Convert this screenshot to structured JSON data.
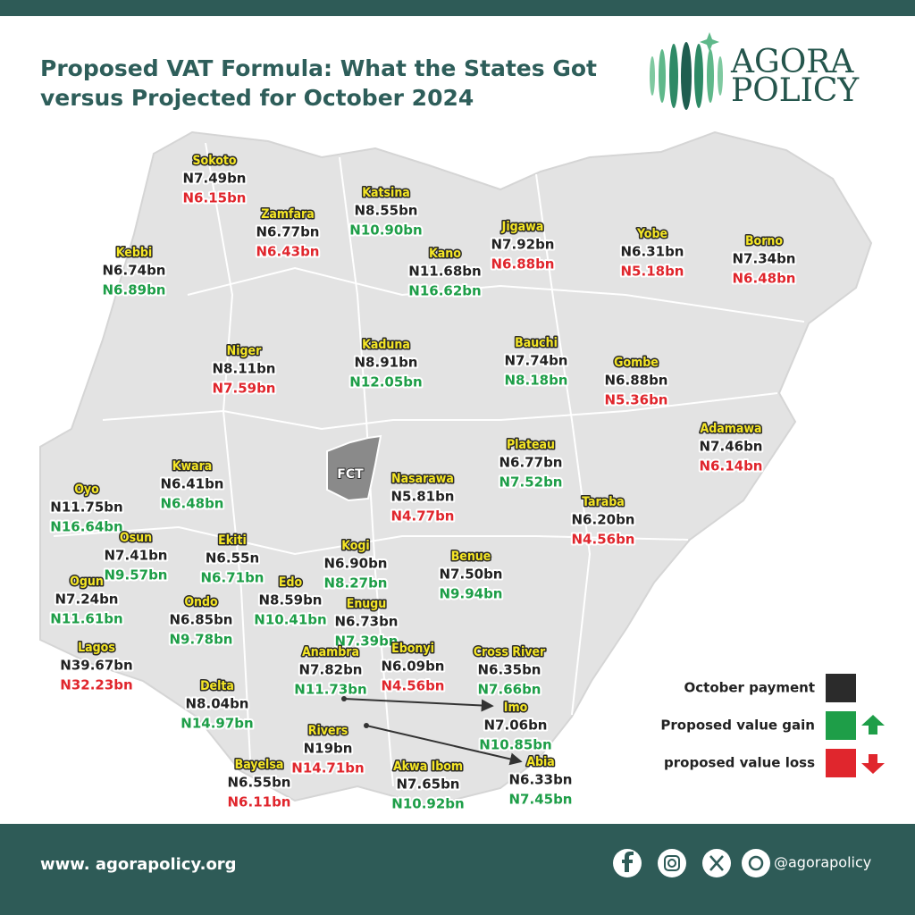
{
  "header": {
    "title_lines": [
      "Proposed VAT Formula: What the States Got",
      "versus Projected for October 2024"
    ],
    "logo": [
      "AGORA",
      "POLICY"
    ]
  },
  "map": {
    "fct_label": "FCT",
    "states": [
      {
        "name": "Sokoto",
        "october": "N7.49bn",
        "proposed": "N6.15bn",
        "proposed_color": "#e0262d"
      },
      {
        "name": "Zamfara",
        "october": "N6.77bn",
        "proposed": "N6.43bn",
        "proposed_color": "#e0262d"
      },
      {
        "name": "Katsina",
        "october": "N8.55bn",
        "proposed": "N10.90bn",
        "proposed_color": "#1e9e48"
      },
      {
        "name": "Kebbi",
        "october": "N6.74bn",
        "proposed": "N6.89bn",
        "proposed_color": "#1e9e48"
      },
      {
        "name": "Kano",
        "october": "N11.68bn",
        "proposed": "N16.62bn",
        "proposed_color": "#1e9e48"
      },
      {
        "name": "Jigawa",
        "october": "N7.92bn",
        "proposed": "N6.88bn",
        "proposed_color": "#e0262d"
      },
      {
        "name": "Yobe",
        "october": "N6.31bn",
        "proposed": "N5.18bn",
        "proposed_color": "#e0262d"
      },
      {
        "name": "Borno",
        "october": "N7.34bn",
        "proposed": "N6.48bn",
        "proposed_color": "#e0262d"
      },
      {
        "name": "Niger",
        "october": "N8.11bn",
        "proposed": "N7.59bn",
        "proposed_color": "#e0262d"
      },
      {
        "name": "Kaduna",
        "october": "N8.91bn",
        "proposed": "N12.05bn",
        "proposed_color": "#1e9e48"
      },
      {
        "name": "Bauchi",
        "october": "N7.74bn",
        "proposed": "N8.18bn",
        "proposed_color": "#1e9e48"
      },
      {
        "name": "Gombe",
        "october": "N6.88bn",
        "proposed": "N5.36bn",
        "proposed_color": "#e0262d"
      },
      {
        "name": "Adamawa",
        "october": "N7.46bn",
        "proposed": "N6.14bn",
        "proposed_color": "#e0262d"
      },
      {
        "name": "Plateau",
        "october": "N6.77bn",
        "proposed": "N7.52bn",
        "proposed_color": "#1e9e48"
      },
      {
        "name": "Kwara",
        "october": "N6.41bn",
        "proposed": "N6.48bn",
        "proposed_color": "#1e9e48"
      },
      {
        "name": "Nasarawa",
        "october": "N5.81bn",
        "proposed": "N4.77bn",
        "proposed_color": "#e0262d"
      },
      {
        "name": "Oyo",
        "october": "N11.75bn",
        "proposed": "N16.64bn",
        "proposed_color": "#1e9e48"
      },
      {
        "name": "Taraba",
        "october": "N6.20bn",
        "proposed": "N4.56bn",
        "proposed_color": "#e0262d"
      },
      {
        "name": "Osun",
        "october": "N7.41bn",
        "proposed": "N9.57bn",
        "proposed_color": "#1e9e48"
      },
      {
        "name": "Ekiti",
        "october": "N6.55n",
        "proposed": "N6.71bn",
        "proposed_color": "#1e9e48"
      },
      {
        "name": "Kogi",
        "october": "N6.90bn",
        "proposed": "N8.27bn",
        "proposed_color": "#1e9e48"
      },
      {
        "name": "Benue",
        "october": "N7.50bn",
        "proposed": "N9.94bn",
        "proposed_color": "#1e9e48"
      },
      {
        "name": "Ogun",
        "october": "N7.24bn",
        "proposed": "N11.61bn",
        "proposed_color": "#1e9e48"
      },
      {
        "name": "Edo",
        "october": "N8.59bn",
        "proposed": "N10.41bn",
        "proposed_color": "#1e9e48"
      },
      {
        "name": "Enugu",
        "october": "N6.73bn",
        "proposed": "N7.39bn",
        "proposed_color": "#1e9e48"
      },
      {
        "name": "Ondo",
        "october": "N6.85bn",
        "proposed": "N9.78bn",
        "proposed_color": "#1e9e48"
      },
      {
        "name": "Lagos",
        "october": "N39.67bn",
        "proposed": "N32.23bn",
        "proposed_color": "#e0262d"
      },
      {
        "name": "Anambra",
        "october": "N7.82bn",
        "proposed": "N11.73bn",
        "proposed_color": "#1e9e48"
      },
      {
        "name": "Ebonyi",
        "october": "N6.09bn",
        "proposed": "N4.56bn",
        "proposed_color": "#e0262d"
      },
      {
        "name": "Cross River",
        "october": "N6.35bn",
        "proposed": "N7.66bn",
        "proposed_color": "#1e9e48"
      },
      {
        "name": "Delta",
        "october": "N8.04bn",
        "proposed": "N14.97bn",
        "proposed_color": "#1e9e48"
      },
      {
        "name": "Imo",
        "october": "N7.06bn",
        "proposed": "N10.85bn",
        "proposed_color": "#1e9e48"
      },
      {
        "name": "Rivers",
        "october": "N19bn",
        "proposed": "N14.71bn",
        "proposed_color": "#e0262d"
      },
      {
        "name": "Abia",
        "october": "N6.33bn",
        "proposed": "N7.45bn",
        "proposed_color": "#1e9e48"
      },
      {
        "name": "Bayelsa",
        "october": "N6.55bn",
        "proposed": "N6.11bn",
        "proposed_color": "#e0262d"
      },
      {
        "name": "Akwa Ibom",
        "october": "N7.65bn",
        "proposed": "N10.92bn",
        "proposed_color": "#1e9e48"
      }
    ]
  },
  "legend": [
    {
      "label": "October payment",
      "color": "#2b2b2b"
    },
    {
      "label": "Proposed value gain",
      "color": "#1e9e48"
    },
    {
      "label": "proposed value loss",
      "color": "#e0262d"
    }
  ],
  "footer": {
    "website": "www. agorapolicy.org",
    "handle": "@agorapolicy"
  }
}
